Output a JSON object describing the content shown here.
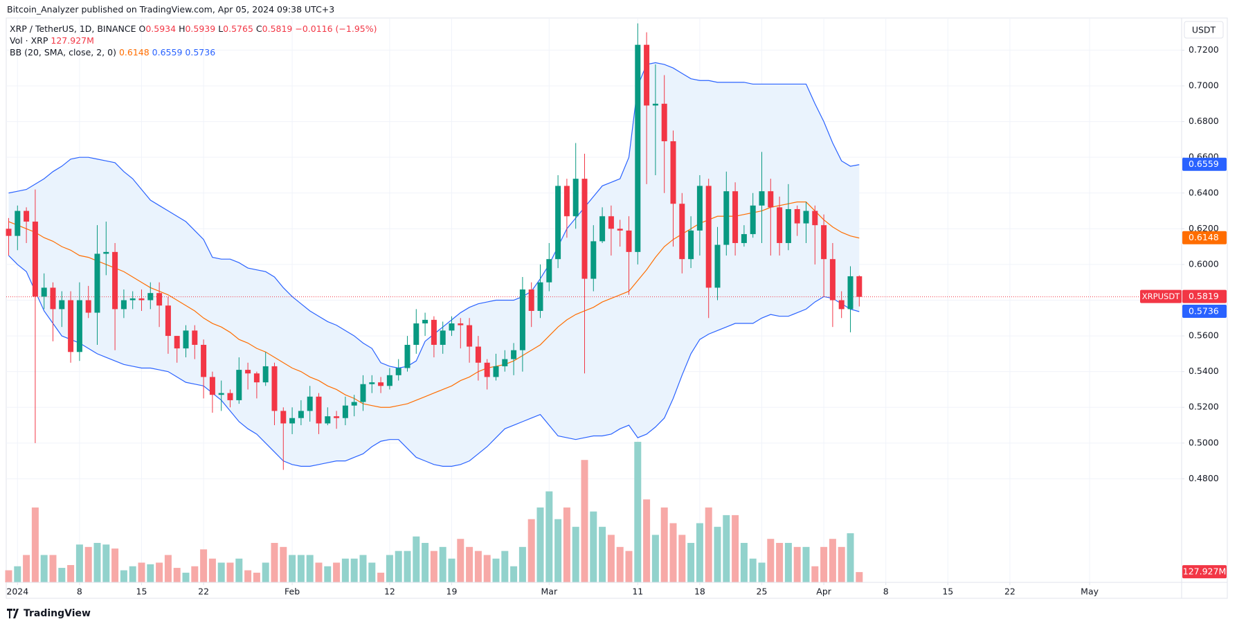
{
  "header": {
    "publisher": "Bitcoin_Analyzer published on TradingView.com, Apr 05, 2024 09:38 UTC+3"
  },
  "legend": {
    "symbol": "XRP / TetherUS, 1D, BINANCE",
    "ohlc": [
      {
        "key": "O",
        "value": "0.5934"
      },
      {
        "key": "H",
        "value": "0.5939"
      },
      {
        "key": "L",
        "value": "0.5765"
      },
      {
        "key": "C",
        "value": "0.5819"
      }
    ],
    "change": "−0.0116 (−1.95%)",
    "vol_label": "Vol · XRP",
    "vol_value": "127.927M",
    "bb_label": "BB (20, SMA, close, 2, 0)",
    "bb_values": [
      "0.6148",
      "0.6559",
      "0.5736"
    ]
  },
  "chart_data": {
    "type": "candlestick",
    "currency": "USDT",
    "x": [
      "2023-12-31",
      "2024-01-01",
      "2024-01-02",
      "2024-01-03",
      "2024-01-04",
      "2024-01-05",
      "2024-01-06",
      "2024-01-07",
      "2024-01-08",
      "2024-01-09",
      "2024-01-10",
      "2024-01-11",
      "2024-01-12",
      "2024-01-13",
      "2024-01-14",
      "2024-01-15",
      "2024-01-16",
      "2024-01-17",
      "2024-01-18",
      "2024-01-19",
      "2024-01-20",
      "2024-01-21",
      "2024-01-22",
      "2024-01-23",
      "2024-01-24",
      "2024-01-25",
      "2024-01-26",
      "2024-01-27",
      "2024-01-28",
      "2024-01-29",
      "2024-01-30",
      "2024-01-31",
      "2024-02-01",
      "2024-02-02",
      "2024-02-03",
      "2024-02-04",
      "2024-02-05",
      "2024-02-06",
      "2024-02-07",
      "2024-02-08",
      "2024-02-09",
      "2024-02-10",
      "2024-02-11",
      "2024-02-12",
      "2024-02-13",
      "2024-02-14",
      "2024-02-15",
      "2024-02-16",
      "2024-02-17",
      "2024-02-18",
      "2024-02-19",
      "2024-02-20",
      "2024-02-21",
      "2024-02-22",
      "2024-02-23",
      "2024-02-24",
      "2024-02-25",
      "2024-02-26",
      "2024-02-27",
      "2024-02-28",
      "2024-02-29",
      "2024-03-01",
      "2024-03-02",
      "2024-03-03",
      "2024-03-04",
      "2024-03-05",
      "2024-03-06",
      "2024-03-07",
      "2024-03-08",
      "2024-03-09",
      "2024-03-10",
      "2024-03-11",
      "2024-03-12",
      "2024-03-13",
      "2024-03-14",
      "2024-03-15",
      "2024-03-16",
      "2024-03-17",
      "2024-03-18",
      "2024-03-19",
      "2024-03-20",
      "2024-03-21",
      "2024-03-22",
      "2024-03-23",
      "2024-03-24",
      "2024-03-25",
      "2024-03-26",
      "2024-03-27",
      "2024-03-28",
      "2024-03-29",
      "2024-03-30",
      "2024-03-31",
      "2024-04-01",
      "2024-04-02",
      "2024-04-03",
      "2024-04-04",
      "2024-04-05"
    ],
    "open": [
      0.62,
      0.616,
      0.63,
      0.624,
      0.582,
      0.587,
      0.575,
      0.58,
      0.551,
      0.58,
      0.573,
      0.606,
      0.607,
      0.575,
      0.58,
      0.581,
      0.58,
      0.584,
      0.577,
      0.56,
      0.553,
      0.563,
      0.555,
      0.537,
      0.527,
      0.528,
      0.524,
      0.541,
      0.539,
      0.534,
      0.543,
      0.518,
      0.511,
      0.514,
      0.518,
      0.526,
      0.511,
      0.515,
      0.514,
      0.521,
      0.523,
      0.533,
      0.534,
      0.532,
      0.538,
      0.542,
      0.555,
      0.567,
      0.569,
      0.555,
      0.563,
      0.567,
      0.566,
      0.554,
      0.545,
      0.537,
      0.543,
      0.547,
      0.552,
      0.586,
      0.574,
      0.59,
      0.603,
      0.644,
      0.627,
      0.648,
      0.592,
      0.613,
      0.627,
      0.62,
      0.619,
      0.607,
      0.723,
      0.689,
      0.69,
      0.669,
      0.634,
      0.603,
      0.619,
      0.644,
      0.587,
      0.611,
      0.641,
      0.612,
      0.617,
      0.633,
      0.641,
      0.632,
      0.612,
      0.631,
      0.623,
      0.63,
      0.622,
      0.603,
      0.58,
      0.575,
      0.5934
    ],
    "high": [
      0.626,
      0.633,
      0.632,
      0.642,
      0.595,
      0.59,
      0.585,
      0.585,
      0.59,
      0.588,
      0.622,
      0.624,
      0.612,
      0.586,
      0.585,
      0.586,
      0.59,
      0.59,
      0.582,
      0.56,
      0.566,
      0.566,
      0.558,
      0.54,
      0.535,
      0.53,
      0.548,
      0.545,
      0.54,
      0.551,
      0.545,
      0.52,
      0.52,
      0.524,
      0.532,
      0.528,
      0.52,
      0.518,
      0.526,
      0.527,
      0.538,
      0.538,
      0.537,
      0.542,
      0.547,
      0.56,
      0.575,
      0.573,
      0.571,
      0.568,
      0.571,
      0.57,
      0.57,
      0.56,
      0.547,
      0.55,
      0.552,
      0.556,
      0.593,
      0.59,
      0.6,
      0.612,
      0.65,
      0.648,
      0.668,
      0.662,
      0.622,
      0.632,
      0.633,
      0.625,
      0.627,
      0.735,
      0.73,
      0.712,
      0.706,
      0.675,
      0.64,
      0.627,
      0.65,
      0.648,
      0.621,
      0.652,
      0.646,
      0.622,
      0.64,
      0.663,
      0.648,
      0.638,
      0.645,
      0.633,
      0.635,
      0.633,
      0.628,
      0.612,
      0.585,
      0.599,
      0.5939
    ],
    "low": [
      0.605,
      0.608,
      0.612,
      0.5,
      0.575,
      0.557,
      0.565,
      0.545,
      0.546,
      0.57,
      0.555,
      0.594,
      0.552,
      0.57,
      0.575,
      0.574,
      0.575,
      0.565,
      0.55,
      0.545,
      0.548,
      0.547,
      0.525,
      0.517,
      0.518,
      0.52,
      0.522,
      0.53,
      0.525,
      0.532,
      0.51,
      0.485,
      0.505,
      0.51,
      0.512,
      0.505,
      0.51,
      0.508,
      0.51,
      0.515,
      0.518,
      0.528,
      0.528,
      0.53,
      0.535,
      0.54,
      0.55,
      0.56,
      0.548,
      0.55,
      0.56,
      0.553,
      0.545,
      0.535,
      0.53,
      0.535,
      0.54,
      0.538,
      0.54,
      0.565,
      0.57,
      0.585,
      0.598,
      0.615,
      0.62,
      0.539,
      0.585,
      0.612,
      0.605,
      0.61,
      0.583,
      0.6,
      0.645,
      0.65,
      0.64,
      0.61,
      0.595,
      0.598,
      0.605,
      0.57,
      0.58,
      0.605,
      0.605,
      0.61,
      0.615,
      0.612,
      0.605,
      0.605,
      0.608,
      0.616,
      0.612,
      0.6,
      0.582,
      0.565,
      0.57,
      0.562,
      0.5765
    ],
    "close": [
      0.616,
      0.63,
      0.624,
      0.582,
      0.587,
      0.575,
      0.58,
      0.551,
      0.58,
      0.573,
      0.606,
      0.607,
      0.575,
      0.58,
      0.581,
      0.58,
      0.584,
      0.577,
      0.56,
      0.553,
      0.563,
      0.555,
      0.537,
      0.527,
      0.528,
      0.524,
      0.541,
      0.539,
      0.534,
      0.543,
      0.518,
      0.511,
      0.514,
      0.518,
      0.526,
      0.511,
      0.515,
      0.514,
      0.521,
      0.523,
      0.533,
      0.534,
      0.532,
      0.538,
      0.542,
      0.555,
      0.567,
      0.569,
      0.555,
      0.563,
      0.567,
      0.566,
      0.554,
      0.545,
      0.537,
      0.543,
      0.547,
      0.552,
      0.586,
      0.574,
      0.59,
      0.603,
      0.644,
      0.627,
      0.648,
      0.592,
      0.613,
      0.627,
      0.62,
      0.619,
      0.607,
      0.723,
      0.689,
      0.69,
      0.669,
      0.634,
      0.603,
      0.619,
      0.644,
      0.587,
      0.611,
      0.641,
      0.612,
      0.617,
      0.633,
      0.641,
      0.632,
      0.612,
      0.631,
      0.623,
      0.63,
      0.622,
      0.603,
      0.58,
      0.575,
      0.5934,
      0.5819
    ],
    "up_color": "#089981",
    "down_color": "#f23645",
    "volume": {
      "values": [
        150,
        200,
        340,
        930,
        340,
        340,
        180,
        215,
        470,
        440,
        490,
        470,
        420,
        150,
        200,
        245,
        225,
        245,
        340,
        180,
        120,
        200,
        410,
        295,
        245,
        245,
        295,
        150,
        120,
        245,
        490,
        440,
        340,
        340,
        340,
        245,
        200,
        245,
        295,
        295,
        340,
        245,
        120,
        340,
        390,
        390,
        570,
        490,
        390,
        440,
        295,
        540,
        440,
        390,
        340,
        295,
        390,
        200,
        440,
        785,
        930,
        1130,
        785,
        930,
        690,
        1520,
        880,
        690,
        590,
        440,
        390,
        1745,
        1030,
        590,
        930,
        735,
        590,
        490,
        735,
        930,
        690,
        835,
        835,
        490,
        295,
        245,
        540,
        490,
        490,
        440,
        440,
        200,
        440,
        540,
        440,
        610,
        127.927
      ],
      "last_label": "127.927M",
      "up_color": "#92d2cc",
      "down_color": "#f7a9a7"
    },
    "bollinger": {
      "upper": {
        "color": "#2962ff",
        "values": [
          0.64,
          0.641,
          0.642,
          0.645,
          0.648,
          0.652,
          0.655,
          0.659,
          0.66,
          0.66,
          0.659,
          0.658,
          0.657,
          0.652,
          0.648,
          0.642,
          0.636,
          0.633,
          0.63,
          0.627,
          0.624,
          0.619,
          0.614,
          0.604,
          0.603,
          0.603,
          0.601,
          0.598,
          0.597,
          0.596,
          0.593,
          0.587,
          0.582,
          0.578,
          0.574,
          0.571,
          0.568,
          0.566,
          0.563,
          0.56,
          0.556,
          0.553,
          0.545,
          0.543,
          0.542,
          0.543,
          0.546,
          0.557,
          0.561,
          0.565,
          0.569,
          0.573,
          0.576,
          0.578,
          0.579,
          0.58,
          0.58,
          0.58,
          0.582,
          0.585,
          0.592,
          0.6,
          0.61,
          0.62,
          0.626,
          0.632,
          0.638,
          0.644,
          0.646,
          0.648,
          0.66,
          0.7,
          0.712,
          0.713,
          0.712,
          0.71,
          0.707,
          0.704,
          0.703,
          0.703,
          0.702,
          0.702,
          0.702,
          0.702,
          0.701,
          0.701,
          0.701,
          0.701,
          0.701,
          0.701,
          0.701,
          0.69,
          0.68,
          0.668,
          0.658,
          0.655,
          0.6559
        ]
      },
      "basis": {
        "color": "#ff6d00",
        "values": [
          0.624,
          0.622,
          0.62,
          0.618,
          0.615,
          0.613,
          0.61,
          0.608,
          0.605,
          0.604,
          0.602,
          0.6,
          0.598,
          0.596,
          0.593,
          0.59,
          0.587,
          0.585,
          0.583,
          0.58,
          0.577,
          0.574,
          0.57,
          0.567,
          0.565,
          0.562,
          0.558,
          0.556,
          0.553,
          0.551,
          0.548,
          0.545,
          0.542,
          0.54,
          0.537,
          0.535,
          0.532,
          0.53,
          0.527,
          0.525,
          0.522,
          0.521,
          0.52,
          0.52,
          0.521,
          0.522,
          0.524,
          0.526,
          0.528,
          0.53,
          0.532,
          0.535,
          0.537,
          0.54,
          0.542,
          0.543,
          0.544,
          0.546,
          0.549,
          0.552,
          0.555,
          0.56,
          0.565,
          0.569,
          0.572,
          0.574,
          0.576,
          0.579,
          0.581,
          0.583,
          0.585,
          0.591,
          0.597,
          0.604,
          0.61,
          0.614,
          0.617,
          0.62,
          0.623,
          0.625,
          0.627,
          0.627,
          0.627,
          0.628,
          0.629,
          0.63,
          0.632,
          0.633,
          0.634,
          0.635,
          0.635,
          0.63,
          0.625,
          0.621,
          0.618,
          0.616,
          0.6148
        ]
      },
      "lower": {
        "color": "#2962ff",
        "values": [
          0.605,
          0.6,
          0.596,
          0.585,
          0.574,
          0.567,
          0.56,
          0.558,
          0.556,
          0.553,
          0.55,
          0.548,
          0.546,
          0.544,
          0.543,
          0.542,
          0.542,
          0.541,
          0.54,
          0.537,
          0.534,
          0.533,
          0.532,
          0.528,
          0.524,
          0.518,
          0.512,
          0.508,
          0.505,
          0.5,
          0.495,
          0.49,
          0.488,
          0.487,
          0.487,
          0.488,
          0.489,
          0.49,
          0.49,
          0.492,
          0.494,
          0.498,
          0.501,
          0.502,
          0.502,
          0.497,
          0.492,
          0.49,
          0.488,
          0.487,
          0.487,
          0.488,
          0.49,
          0.494,
          0.498,
          0.503,
          0.508,
          0.51,
          0.512,
          0.514,
          0.516,
          0.51,
          0.504,
          0.503,
          0.502,
          0.503,
          0.504,
          0.504,
          0.505,
          0.508,
          0.51,
          0.503,
          0.505,
          0.509,
          0.514,
          0.525,
          0.538,
          0.55,
          0.558,
          0.561,
          0.563,
          0.565,
          0.567,
          0.567,
          0.567,
          0.57,
          0.572,
          0.571,
          0.571,
          0.573,
          0.575,
          0.579,
          0.582,
          0.581,
          0.578,
          0.575,
          0.5736
        ]
      },
      "fill": "#eaf3fd"
    },
    "ylim": [
      0.422,
      0.738
    ],
    "yticks": [
      {
        "value": 0.48,
        "label": "0.4800"
      },
      {
        "value": 0.5,
        "label": "0.5000"
      },
      {
        "value": 0.52,
        "label": "0.5200"
      },
      {
        "value": 0.54,
        "label": "0.5400"
      },
      {
        "value": 0.56,
        "label": "0.5600"
      },
      {
        "value": 0.58,
        "label": "0.5800"
      },
      {
        "value": 0.6,
        "label": "0.6000"
      },
      {
        "value": 0.62,
        "label": "0.6200"
      },
      {
        "value": 0.64,
        "label": "0.6400"
      },
      {
        "value": 0.66,
        "label": "0.6600"
      },
      {
        "value": 0.68,
        "label": "0.6800"
      },
      {
        "value": 0.7,
        "label": "0.7000"
      },
      {
        "value": 0.72,
        "label": "0.7200"
      }
    ],
    "xticks": [
      {
        "value": "2024-01-01",
        "label": "2024"
      },
      {
        "value": "2024-01-08",
        "label": "8"
      },
      {
        "value": "2024-01-15",
        "label": "15"
      },
      {
        "value": "2024-01-22",
        "label": "22"
      },
      {
        "value": "2024-02-01",
        "label": "Feb"
      },
      {
        "value": "2024-02-12",
        "label": "12"
      },
      {
        "value": "2024-02-19",
        "label": "19"
      },
      {
        "value": "2024-03-01",
        "label": "Mar"
      },
      {
        "value": "2024-03-11",
        "label": "11"
      },
      {
        "value": "2024-03-18",
        "label": "18"
      },
      {
        "value": "2024-03-25",
        "label": "25"
      },
      {
        "value": "2024-04-01",
        "label": "Apr"
      },
      {
        "value": "2024-04-08",
        "label": "8"
      },
      {
        "value": "2024-04-15",
        "label": "15"
      },
      {
        "value": "2024-04-22",
        "label": "22"
      },
      {
        "value": "2024-05-01",
        "label": "May"
      }
    ],
    "grid": true,
    "price_tags": [
      {
        "name": "XRPUSDT",
        "value": 0.5819,
        "label": "0.5819",
        "color": "#f23645"
      },
      {
        "value": 0.6559,
        "label": "0.6559",
        "color": "#2962ff"
      },
      {
        "value": 0.6148,
        "label": "0.6148",
        "color": "#ff6d00"
      },
      {
        "value": 0.5736,
        "label": "0.5736",
        "color": "#2962ff"
      }
    ]
  },
  "footer": {
    "brand": "TradingView"
  }
}
